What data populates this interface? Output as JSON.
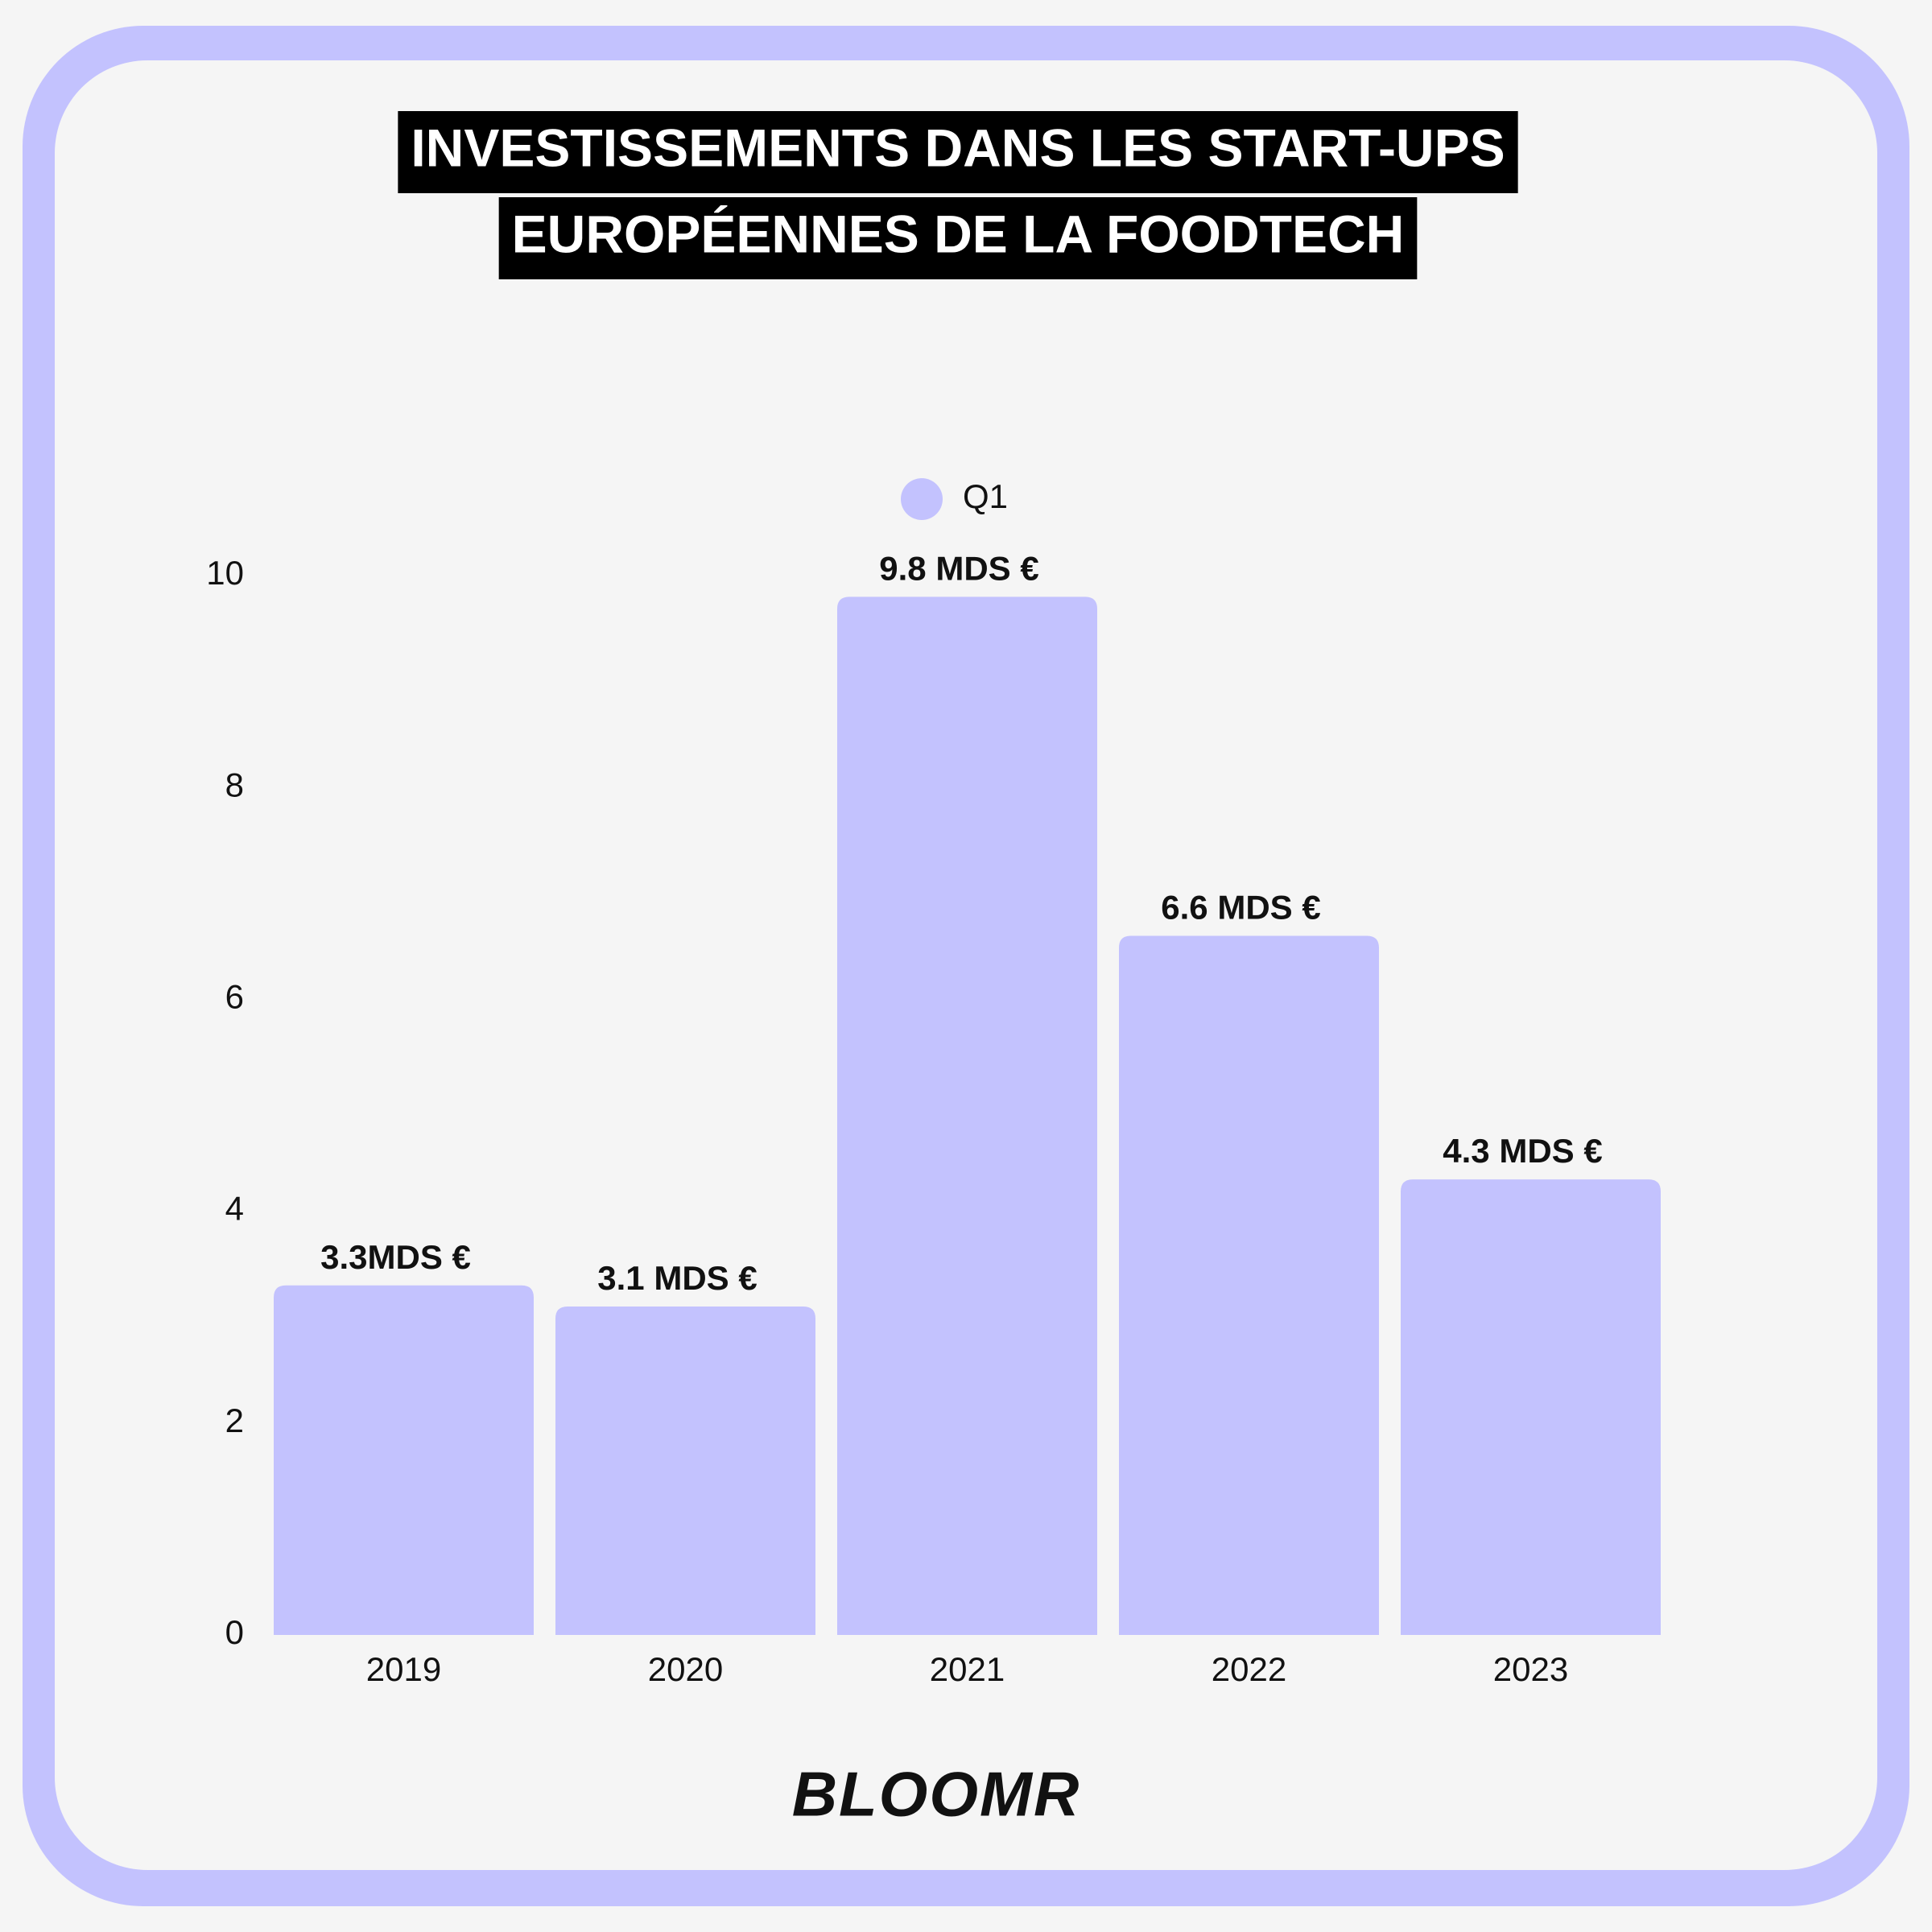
{
  "chart_data": {
    "type": "bar",
    "title": [
      "INVESTISSEMENTS DANS LES START-UPS",
      "EUROPÉENNES DE LA FOODTECH"
    ],
    "categories": [
      "2019",
      "2020",
      "2021",
      "2022",
      "2023"
    ],
    "series": [
      {
        "name": "Q1",
        "color": "#c3c2fe",
        "values": [
          3.3,
          3.1,
          9.8,
          6.6,
          4.3
        ],
        "value_labels": [
          "3.3MDS €",
          "3.1 MDS €",
          "9.8 MDS €",
          "6.6 MDS €",
          "4.3 MDS €"
        ]
      }
    ],
    "ylim": [
      0,
      10
    ],
    "yticks": [
      0,
      2,
      4,
      6,
      8,
      10
    ],
    "grid": false
  },
  "brand": "BLOOMR"
}
